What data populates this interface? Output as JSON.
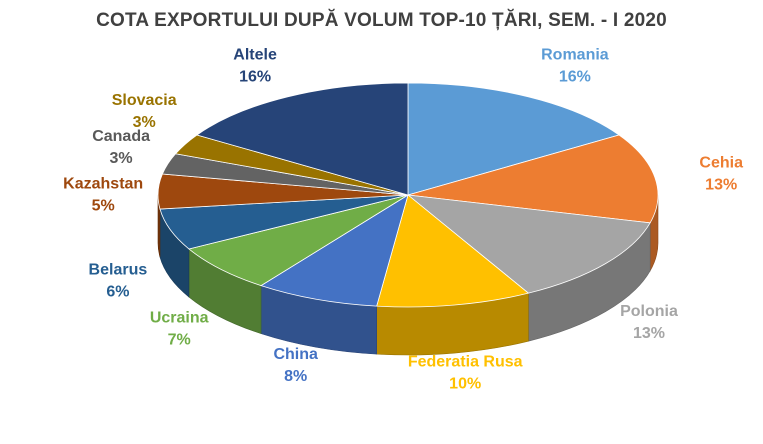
{
  "chart_data": {
    "type": "pie",
    "title": "COTA EXPORTULUI DUPĂ VOLUM TOP-10 ȚĂRI, SEM. - I 2020",
    "unit": "%",
    "slices": [
      {
        "name": "Romania",
        "value": 16,
        "label": "16%",
        "color": "#5B9BD5"
      },
      {
        "name": "Cehia",
        "value": 13,
        "label": "13%",
        "color": "#ED7D31"
      },
      {
        "name": "Polonia",
        "value": 13,
        "label": "13%",
        "color": "#A5A5A5"
      },
      {
        "name": "Federatia Rusa",
        "value": 10,
        "label": "10%",
        "color": "#FFC000"
      },
      {
        "name": "China",
        "value": 8,
        "label": "8%",
        "color": "#4472C4"
      },
      {
        "name": "Ucraina",
        "value": 7,
        "label": "7%",
        "color": "#70AD47"
      },
      {
        "name": "Belarus",
        "value": 6,
        "label": "6%",
        "color": "#255E91"
      },
      {
        "name": "Kazahstan",
        "value": 5,
        "label": "5%",
        "color": "#9E480E"
      },
      {
        "name": "Canada",
        "value": 3,
        "label": "3%",
        "color": "#636363"
      },
      {
        "name": "Slovacia",
        "value": 3,
        "label": "3%",
        "color": "#997300"
      },
      {
        "name": "Altele",
        "value": 16,
        "label": "16%",
        "color": "#264478"
      }
    ]
  }
}
